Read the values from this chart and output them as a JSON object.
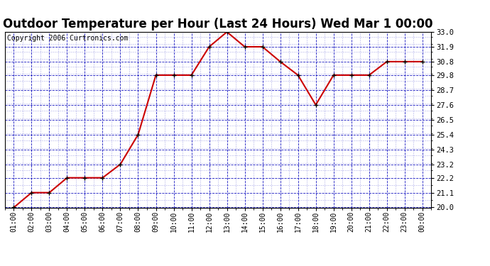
{
  "title": "Outdoor Temperature per Hour (Last 24 Hours) Wed Mar 1 00:00",
  "copyright": "Copyright 2006 Curtronics.com",
  "x_labels": [
    "01:00",
    "02:00",
    "03:00",
    "04:00",
    "05:00",
    "06:00",
    "07:00",
    "08:00",
    "09:00",
    "10:00",
    "11:00",
    "12:00",
    "13:00",
    "14:00",
    "15:00",
    "16:00",
    "17:00",
    "18:00",
    "19:00",
    "20:00",
    "21:00",
    "22:00",
    "23:00",
    "00:00"
  ],
  "y_values": [
    20.0,
    21.1,
    21.1,
    22.2,
    22.2,
    22.2,
    23.2,
    25.4,
    29.8,
    29.8,
    29.8,
    31.9,
    33.0,
    31.9,
    31.9,
    30.8,
    29.8,
    27.6,
    29.8,
    29.8,
    29.8,
    30.8,
    30.8,
    30.8
  ],
  "ylim": [
    20.0,
    33.0
  ],
  "yticks": [
    20.0,
    21.1,
    22.2,
    23.2,
    24.3,
    25.4,
    26.5,
    27.6,
    28.7,
    29.8,
    30.8,
    31.9,
    33.0
  ],
  "line_color": "#cc0000",
  "marker_color": "#000000",
  "bg_color": "#ffffff",
  "plot_bg_color": "#ffffff",
  "grid_color_major": "#0000bb",
  "title_fontsize": 12,
  "copyright_fontsize": 7
}
